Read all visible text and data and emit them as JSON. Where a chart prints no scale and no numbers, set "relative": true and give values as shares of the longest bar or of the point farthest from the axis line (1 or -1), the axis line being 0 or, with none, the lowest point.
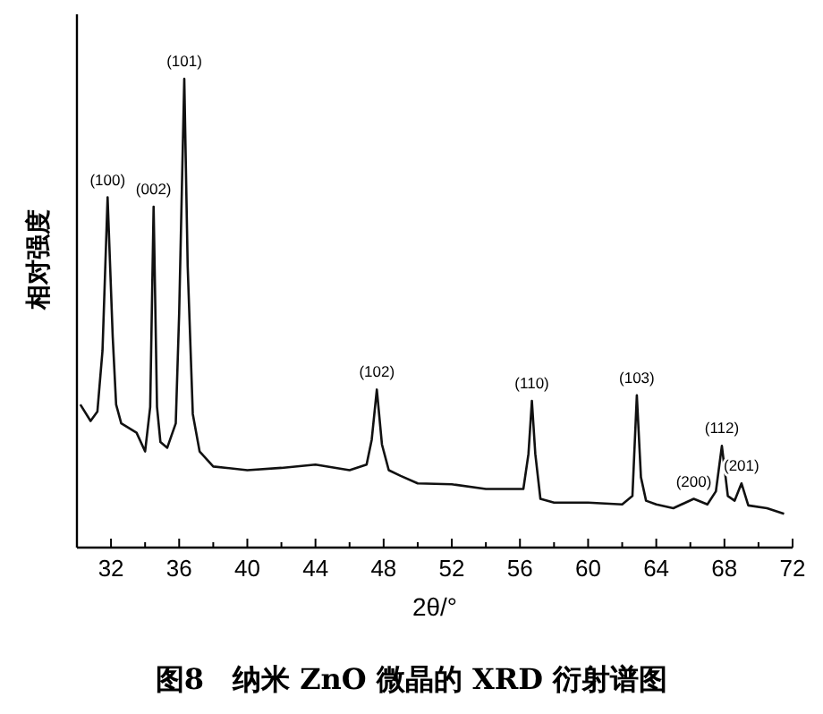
{
  "chart_data": {
    "type": "line",
    "relative": true,
    "title": "图8　纳米 ZnO 微晶的 XRD 衍射谱图",
    "xlabel": "2θ/°",
    "ylabel": "相对强度",
    "xlim": [
      30,
      72
    ],
    "xticks": [
      32,
      36,
      40,
      44,
      48,
      52,
      56,
      60,
      64,
      68,
      72
    ],
    "series": [
      {
        "color": "#111111",
        "x": [
          30.2,
          30.8,
          31.2,
          31.5,
          31.8,
          32.1,
          32.3,
          32.6,
          33.5,
          34.0,
          34.3,
          34.5,
          34.7,
          34.9,
          35.3,
          35.8,
          36.0,
          36.3,
          36.5,
          36.8,
          37.2,
          38.0,
          40.0,
          42.0,
          44.0,
          46.0,
          47.0,
          47.3,
          47.6,
          47.9,
          48.3,
          49.0,
          50.0,
          52.0,
          54.0,
          56.2,
          56.5,
          56.7,
          56.9,
          57.2,
          58.0,
          60.0,
          62.0,
          62.6,
          62.86,
          63.1,
          63.4,
          64.0,
          65.0,
          66.2,
          67.0,
          67.5,
          67.85,
          68.2,
          68.6,
          69.0,
          69.4,
          70.5,
          71.5
        ],
        "values": [
          0.305,
          0.27,
          0.29,
          0.42,
          0.747,
          0.45,
          0.305,
          0.265,
          0.245,
          0.205,
          0.3,
          0.727,
          0.3,
          0.225,
          0.213,
          0.265,
          0.5,
          1.0,
          0.6,
          0.285,
          0.205,
          0.173,
          0.165,
          0.17,
          0.177,
          0.165,
          0.177,
          0.23,
          0.337,
          0.22,
          0.165,
          0.153,
          0.137,
          0.135,
          0.125,
          0.125,
          0.2,
          0.313,
          0.2,
          0.104,
          0.096,
          0.096,
          0.092,
          0.11,
          0.325,
          0.15,
          0.1,
          0.092,
          0.084,
          0.104,
          0.092,
          0.12,
          0.217,
          0.11,
          0.1,
          0.137,
          0.09,
          0.084,
          0.072
        ]
      }
    ],
    "annotations": [
      {
        "text": "(100)",
        "x": 31.8,
        "y": 0.747
      },
      {
        "text": "(002)",
        "x": 34.5,
        "y": 0.727
      },
      {
        "text": "(101)",
        "x": 36.3,
        "y": 1.0
      },
      {
        "text": "(102)",
        "x": 47.6,
        "y": 0.337
      },
      {
        "text": "(110)",
        "x": 56.7,
        "y": 0.313
      },
      {
        "text": "(103)",
        "x": 62.86,
        "y": 0.325
      },
      {
        "text": "(200)",
        "x": 66.2,
        "y": 0.104
      },
      {
        "text": "(112)",
        "x": 67.85,
        "y": 0.217
      },
      {
        "text": "(201)",
        "x": 69.0,
        "y": 0.137
      }
    ]
  }
}
